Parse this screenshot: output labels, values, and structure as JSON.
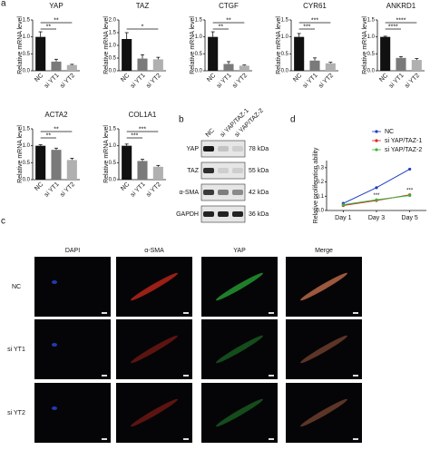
{
  "panel_labels": [
    "a",
    "b",
    "c",
    "d"
  ],
  "chart_data": [
    {
      "type": "bar",
      "title": "YAP",
      "y_label": "Relative mRNA level",
      "categories": [
        "NC",
        "si YT1",
        "si YT2"
      ],
      "values": [
        1.0,
        0.27,
        0.17
      ],
      "errors": [
        0.15,
        0.07,
        0.02
      ],
      "colors": [
        "#111111",
        "#7a7a7a",
        "#b0b0b0"
      ],
      "ylim": [
        0,
        1.5
      ],
      "yticks": [
        {
          "value": 0,
          "label": "0.0"
        },
        {
          "value": 0.5,
          "label": "0.5"
        },
        {
          "value": 1,
          "label": "1.0"
        },
        {
          "value": 1.5,
          "label": "1.5"
        }
      ],
      "significance": [
        "**",
        "**"
      ]
    },
    {
      "type": "bar",
      "title": "TAZ",
      "y_label": "Relative mRNA level",
      "categories": [
        "NC",
        "si YT1",
        "si YT2"
      ],
      "values": [
        1.25,
        0.48,
        0.45
      ],
      "errors": [
        0.25,
        0.15,
        0.08
      ],
      "colors": [
        "#111111",
        "#7a7a7a",
        "#b0b0b0"
      ],
      "ylim": [
        0,
        2
      ],
      "yticks": [
        {
          "value": 0,
          "label": "0.0"
        },
        {
          "value": 0.5,
          "label": "0.5"
        },
        {
          "value": 1,
          "label": "1.0"
        },
        {
          "value": 1.5,
          "label": "1.5"
        },
        {
          "value": 2,
          "label": "2.0"
        }
      ],
      "significance": [
        "*"
      ]
    },
    {
      "type": "bar",
      "title": "CTGF",
      "y_label": "Relative mRNA level",
      "categories": [
        "NC",
        "si YT1",
        "si YT2"
      ],
      "values": [
        1.0,
        0.2,
        0.15
      ],
      "errors": [
        0.15,
        0.07,
        0.02
      ],
      "colors": [
        "#111111",
        "#7a7a7a",
        "#b0b0b0"
      ],
      "ylim": [
        0,
        1.5
      ],
      "yticks": [
        {
          "value": 0,
          "label": "0.0"
        },
        {
          "value": 0.5,
          "label": "0.5"
        },
        {
          "value": 1,
          "label": "1.0"
        },
        {
          "value": 1.5,
          "label": "1.5"
        }
      ],
      "significance": [
        "**",
        "**"
      ]
    },
    {
      "type": "bar",
      "title": "CYR61",
      "y_label": "Relative mRNA level",
      "categories": [
        "NC",
        "si YT1",
        "si YT2"
      ],
      "values": [
        1.0,
        0.3,
        0.22
      ],
      "errors": [
        0.1,
        0.08,
        0.03
      ],
      "colors": [
        "#111111",
        "#7a7a7a",
        "#b0b0b0"
      ],
      "ylim": [
        0,
        1.5
      ],
      "yticks": [
        {
          "value": 0,
          "label": "0.0"
        },
        {
          "value": 0.5,
          "label": "0.5"
        },
        {
          "value": 1,
          "label": "1.0"
        },
        {
          "value": 1.5,
          "label": "1.5"
        }
      ],
      "significance": [
        "***",
        "***"
      ]
    },
    {
      "type": "bar",
      "title": "ANKRD1",
      "y_label": "Relative mRNA level",
      "categories": [
        "NC",
        "si YT1",
        "si YT2"
      ],
      "values": [
        1.0,
        0.38,
        0.32
      ],
      "errors": [
        0.02,
        0.04,
        0.04
      ],
      "colors": [
        "#111111",
        "#7a7a7a",
        "#b0b0b0"
      ],
      "ylim": [
        0,
        1.5
      ],
      "yticks": [
        {
          "value": 0,
          "label": "0.0"
        },
        {
          "value": 0.5,
          "label": "0.5"
        },
        {
          "value": 1,
          "label": "1.0"
        },
        {
          "value": 1.5,
          "label": "1.5"
        }
      ],
      "significance": [
        "****",
        "****"
      ]
    },
    {
      "type": "bar",
      "title": "ACTA2",
      "y_label": "Relative mRNA level",
      "categories": [
        "NC",
        "si YT1",
        "si YT2"
      ],
      "values": [
        1.0,
        0.88,
        0.58
      ],
      "errors": [
        0.03,
        0.05,
        0.05
      ],
      "colors": [
        "#111111",
        "#7a7a7a",
        "#b0b0b0"
      ],
      "ylim": [
        0,
        1.5
      ],
      "yticks": [
        {
          "value": 0,
          "label": "0.0"
        },
        {
          "value": 0.5,
          "label": "0.5"
        },
        {
          "value": 1,
          "label": "1.0"
        },
        {
          "value": 1.5,
          "label": "1.5"
        }
      ],
      "significance": [
        "**",
        "**"
      ]
    },
    {
      "type": "bar",
      "title": "COL1A1",
      "y_label": "Relative mRNA level",
      "categories": [
        "NC",
        "si YT1",
        "si YT2"
      ],
      "values": [
        1.0,
        0.55,
        0.38
      ],
      "errors": [
        0.05,
        0.05,
        0.04
      ],
      "colors": [
        "#111111",
        "#7a7a7a",
        "#b0b0b0"
      ],
      "ylim": [
        0,
        1.5
      ],
      "yticks": [
        {
          "value": 0,
          "label": "0.0"
        },
        {
          "value": 0.5,
          "label": "0.5"
        },
        {
          "value": 1,
          "label": "1.0"
        },
        {
          "value": 1.5,
          "label": "1.5"
        }
      ],
      "significance": [
        "***",
        "***"
      ]
    },
    {
      "type": "line",
      "y_label": "Relative proliferation ability",
      "categories": [
        "Day 1",
        "Day 3",
        "Day 5"
      ],
      "series": [
        {
          "name": "NC",
          "color": "#1f3fbf",
          "values": [
            0.05,
            0.16,
            0.29
          ]
        },
        {
          "name": "si YAP/TAZ-1",
          "color": "#d9261c",
          "values": [
            0.035,
            0.07,
            0.11
          ]
        },
        {
          "name": "si YAP/TAZ-2",
          "color": "#3cb33c",
          "values": [
            0.04,
            0.075,
            0.105
          ]
        }
      ],
      "ylim": [
        0,
        0.35
      ],
      "yticks": [
        {
          "value": 0,
          "label": "0.0"
        },
        {
          "value": 0.1,
          "label": "0.1"
        },
        {
          "value": 0.2,
          "label": "0.2"
        },
        {
          "value": 0.3,
          "label": "0.3"
        }
      ],
      "annotations": [
        "***",
        "***"
      ],
      "legend": "top-right"
    }
  ],
  "blot": {
    "lanes": [
      "NC",
      "si YAP/TAZ-1",
      "si YAP/TAZ-2"
    ],
    "rows": [
      {
        "protein": "YAP",
        "size": "78 kDa"
      },
      {
        "protein": "TAZ",
        "size": "55 kDa"
      },
      {
        "protein": "α-SMA",
        "size": "42 kDa"
      },
      {
        "protein": "GAPDH",
        "size": "36 kDa"
      }
    ]
  },
  "microscopy": {
    "columns": [
      "DAPI",
      "α-SMA",
      "YAP",
      "Merge"
    ],
    "rows": [
      "NC",
      "si YT1",
      "si YT2"
    ]
  }
}
